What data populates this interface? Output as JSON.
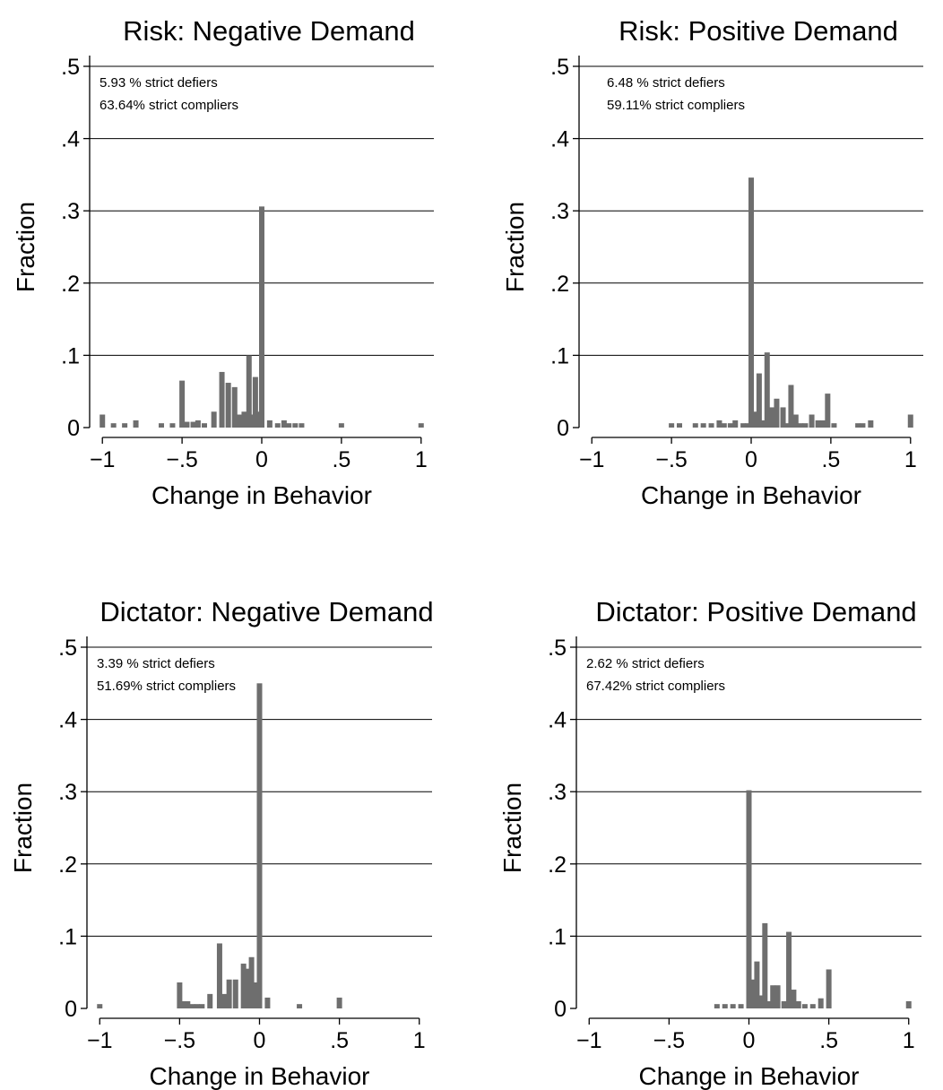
{
  "chart_data": [
    {
      "type": "bar",
      "title": "Risk: Negative Demand",
      "xlabel": "Change in Behavior",
      "ylabel": "Fraction",
      "xlim": [
        -1.08,
        1.08
      ],
      "ylim": [
        0,
        0.5
      ],
      "xticks": [
        -1,
        -0.5,
        0,
        0.5,
        1
      ],
      "xtick_labels": [
        "−1",
        "−.5",
        "0",
        ".5",
        "1"
      ],
      "yticks": [
        0,
        0.1,
        0.2,
        0.3,
        0.4,
        0.5
      ],
      "ytick_labels": [
        "0",
        ".1",
        ".2",
        ".3",
        ".4",
        ".5"
      ],
      "grid": true,
      "annotations": [
        "5.93 % strict defiers",
        "63.64% strict compliers"
      ],
      "bars": [
        {
          "x": -1.0,
          "y": 0.018
        },
        {
          "x": -0.93,
          "y": 0.006
        },
        {
          "x": -0.86,
          "y": 0.006
        },
        {
          "x": -0.79,
          "y": 0.01
        },
        {
          "x": -0.63,
          "y": 0.006
        },
        {
          "x": -0.56,
          "y": 0.006
        },
        {
          "x": -0.5,
          "y": 0.065
        },
        {
          "x": -0.47,
          "y": 0.008
        },
        {
          "x": -0.43,
          "y": 0.008
        },
        {
          "x": -0.4,
          "y": 0.01
        },
        {
          "x": -0.36,
          "y": 0.006
        },
        {
          "x": -0.3,
          "y": 0.022
        },
        {
          "x": -0.25,
          "y": 0.077
        },
        {
          "x": -0.21,
          "y": 0.062
        },
        {
          "x": -0.17,
          "y": 0.056
        },
        {
          "x": -0.14,
          "y": 0.018
        },
        {
          "x": -0.11,
          "y": 0.022
        },
        {
          "x": -0.08,
          "y": 0.1
        },
        {
          "x": -0.05,
          "y": 0.018
        },
        {
          "x": -0.04,
          "y": 0.07
        },
        {
          "x": -0.01,
          "y": 0.022
        },
        {
          "x": 0.0,
          "y": 0.306
        },
        {
          "x": 0.05,
          "y": 0.01
        },
        {
          "x": 0.1,
          "y": 0.006
        },
        {
          "x": 0.14,
          "y": 0.01
        },
        {
          "x": 0.17,
          "y": 0.006
        },
        {
          "x": 0.21,
          "y": 0.006
        },
        {
          "x": 0.25,
          "y": 0.006
        },
        {
          "x": 0.5,
          "y": 0.006
        },
        {
          "x": 1.0,
          "y": 0.006
        }
      ]
    },
    {
      "type": "bar",
      "title": "Risk: Positive Demand",
      "xlabel": "Change in Behavior",
      "ylabel": "Fraction",
      "xlim": [
        -1.08,
        1.08
      ],
      "ylim": [
        0,
        0.5
      ],
      "xticks": [
        -1,
        -0.5,
        0,
        0.5,
        1
      ],
      "xtick_labels": [
        "−1",
        "−.5",
        "0",
        ".5",
        "1"
      ],
      "yticks": [
        0,
        0.1,
        0.2,
        0.3,
        0.4,
        0.5
      ],
      "ytick_labels": [
        "0",
        ".1",
        ".2",
        ".3",
        ".4",
        ".5"
      ],
      "grid": true,
      "annotations": [
        "6.48 % strict defiers",
        "59.11% strict compliers"
      ],
      "bars": [
        {
          "x": -0.5,
          "y": 0.006
        },
        {
          "x": -0.45,
          "y": 0.006
        },
        {
          "x": -0.35,
          "y": 0.006
        },
        {
          "x": -0.3,
          "y": 0.006
        },
        {
          "x": -0.25,
          "y": 0.006
        },
        {
          "x": -0.2,
          "y": 0.01
        },
        {
          "x": -0.17,
          "y": 0.006
        },
        {
          "x": -0.13,
          "y": 0.006
        },
        {
          "x": -0.1,
          "y": 0.01
        },
        {
          "x": -0.05,
          "y": 0.006
        },
        {
          "x": -0.02,
          "y": 0.006
        },
        {
          "x": 0.0,
          "y": 0.346
        },
        {
          "x": 0.03,
          "y": 0.022
        },
        {
          "x": 0.05,
          "y": 0.075
        },
        {
          "x": 0.08,
          "y": 0.01
        },
        {
          "x": 0.1,
          "y": 0.104
        },
        {
          "x": 0.13,
          "y": 0.028
        },
        {
          "x": 0.16,
          "y": 0.04
        },
        {
          "x": 0.2,
          "y": 0.028
        },
        {
          "x": 0.22,
          "y": 0.006
        },
        {
          "x": 0.25,
          "y": 0.059
        },
        {
          "x": 0.28,
          "y": 0.018
        },
        {
          "x": 0.31,
          "y": 0.006
        },
        {
          "x": 0.34,
          "y": 0.006
        },
        {
          "x": 0.38,
          "y": 0.018
        },
        {
          "x": 0.42,
          "y": 0.01
        },
        {
          "x": 0.45,
          "y": 0.01
        },
        {
          "x": 0.48,
          "y": 0.047
        },
        {
          "x": 0.52,
          "y": 0.006
        },
        {
          "x": 0.67,
          "y": 0.006
        },
        {
          "x": 0.7,
          "y": 0.006
        },
        {
          "x": 0.75,
          "y": 0.01
        },
        {
          "x": 1.0,
          "y": 0.018
        }
      ]
    },
    {
      "type": "bar",
      "title": "Dictator: Negative Demand",
      "xlabel": "Change in Behavior",
      "ylabel": "Fraction",
      "xlim": [
        -1.08,
        1.08
      ],
      "ylim": [
        0,
        0.5
      ],
      "xticks": [
        -1,
        -0.5,
        0,
        0.5,
        1
      ],
      "xtick_labels": [
        "−1",
        "−.5",
        "0",
        ".5",
        "1"
      ],
      "yticks": [
        0,
        0.1,
        0.2,
        0.3,
        0.4,
        0.5
      ],
      "ytick_labels": [
        "0",
        ".1",
        ".2",
        ".3",
        ".4",
        ".5"
      ],
      "grid": true,
      "annotations": [
        "3.39 % strict defiers",
        "51.69% strict compliers"
      ],
      "bars": [
        {
          "x": -1.0,
          "y": 0.006
        },
        {
          "x": -0.5,
          "y": 0.036
        },
        {
          "x": -0.48,
          "y": 0.01
        },
        {
          "x": -0.45,
          "y": 0.01
        },
        {
          "x": -0.42,
          "y": 0.006
        },
        {
          "x": -0.39,
          "y": 0.006
        },
        {
          "x": -0.36,
          "y": 0.006
        },
        {
          "x": -0.31,
          "y": 0.02
        },
        {
          "x": -0.25,
          "y": 0.09
        },
        {
          "x": -0.22,
          "y": 0.02
        },
        {
          "x": -0.19,
          "y": 0.04
        },
        {
          "x": -0.15,
          "y": 0.04
        },
        {
          "x": -0.1,
          "y": 0.062
        },
        {
          "x": -0.08,
          "y": 0.055
        },
        {
          "x": -0.05,
          "y": 0.071
        },
        {
          "x": -0.02,
          "y": 0.036
        },
        {
          "x": 0.0,
          "y": 0.45
        },
        {
          "x": 0.05,
          "y": 0.015
        },
        {
          "x": 0.25,
          "y": 0.006
        },
        {
          "x": 0.5,
          "y": 0.015
        }
      ]
    },
    {
      "type": "bar",
      "title": "Dictator: Positive Demand",
      "xlabel": "Change in Behavior",
      "ylabel": "Fraction",
      "xlim": [
        -1.08,
        1.08
      ],
      "ylim": [
        0,
        0.5
      ],
      "xticks": [
        -1,
        -0.5,
        0,
        0.5,
        1
      ],
      "xtick_labels": [
        "−1",
        "−.5",
        "0",
        ".5",
        "1"
      ],
      "yticks": [
        0,
        0.1,
        0.2,
        0.3,
        0.4,
        0.5
      ],
      "ytick_labels": [
        "0",
        ".1",
        ".2",
        ".3",
        ".4",
        ".5"
      ],
      "grid": true,
      "annotations": [
        "2.62 % strict defiers",
        "67.42% strict compliers"
      ],
      "bars": [
        {
          "x": -0.2,
          "y": 0.006
        },
        {
          "x": -0.15,
          "y": 0.006
        },
        {
          "x": -0.1,
          "y": 0.006
        },
        {
          "x": -0.05,
          "y": 0.006
        },
        {
          "x": 0.0,
          "y": 0.302
        },
        {
          "x": 0.02,
          "y": 0.04
        },
        {
          "x": 0.05,
          "y": 0.065
        },
        {
          "x": 0.07,
          "y": 0.018
        },
        {
          "x": 0.1,
          "y": 0.118
        },
        {
          "x": 0.12,
          "y": 0.01
        },
        {
          "x": 0.15,
          "y": 0.032
        },
        {
          "x": 0.18,
          "y": 0.032
        },
        {
          "x": 0.22,
          "y": 0.01
        },
        {
          "x": 0.25,
          "y": 0.106
        },
        {
          "x": 0.28,
          "y": 0.026
        },
        {
          "x": 0.31,
          "y": 0.01
        },
        {
          "x": 0.35,
          "y": 0.006
        },
        {
          "x": 0.4,
          "y": 0.006
        },
        {
          "x": 0.45,
          "y": 0.014
        },
        {
          "x": 0.5,
          "y": 0.054
        },
        {
          "x": 1.0,
          "y": 0.01
        }
      ]
    }
  ]
}
